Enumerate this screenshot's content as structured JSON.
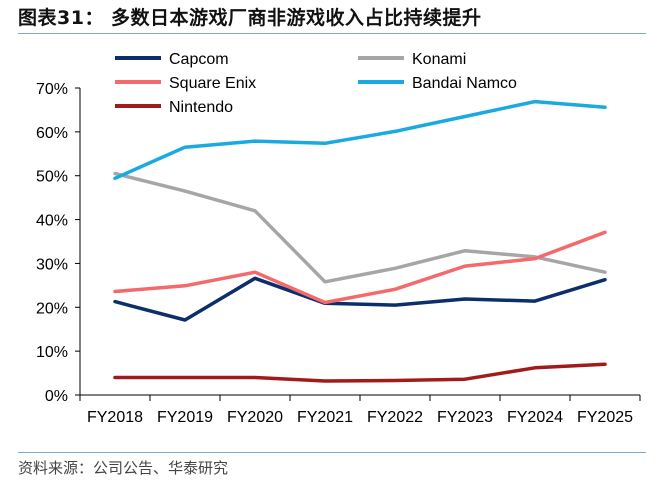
{
  "header": {
    "title": "图表31：  多数日本游戏厂商非游戏收入占比持续提升"
  },
  "footer": {
    "source": "资料来源：公司公告、华泰研究"
  },
  "chart_data": {
    "type": "line",
    "x": [
      "FY2018",
      "FY2019",
      "FY2020",
      "FY2021",
      "FY2022",
      "FY2023",
      "FY2024",
      "FY2025"
    ],
    "ylim": [
      0,
      70
    ],
    "yticks": [
      "0%",
      "10%",
      "20%",
      "30%",
      "40%",
      "50%",
      "60%",
      "70%"
    ],
    "ytick_values": [
      0,
      10,
      20,
      30,
      40,
      50,
      60,
      70
    ],
    "legend_placement": "top",
    "grid": false,
    "series": [
      {
        "name": "Capcom",
        "color": "#0b2f6b",
        "values": [
          21.3,
          17.1,
          26.6,
          20.9,
          20.5,
          21.9,
          21.4,
          26.3
        ]
      },
      {
        "name": "Konami",
        "color": "#a6a6a6",
        "values": [
          50.5,
          46.5,
          42.0,
          25.8,
          28.9,
          32.9,
          31.5,
          28.0
        ]
      },
      {
        "name": "Square Enix",
        "color": "#f4696b",
        "values": [
          23.6,
          24.9,
          28.0,
          21.1,
          24.1,
          29.4,
          31.1,
          37.1
        ]
      },
      {
        "name": "Bandai Namco",
        "color": "#1aa9e0",
        "values": [
          49.4,
          56.5,
          57.9,
          57.4,
          60.1,
          63.5,
          66.9,
          65.6
        ]
      },
      {
        "name": "Nintendo",
        "color": "#a01c1c",
        "values": [
          4.0,
          4.0,
          4.0,
          3.2,
          3.3,
          3.6,
          6.2,
          7.0
        ]
      }
    ]
  }
}
